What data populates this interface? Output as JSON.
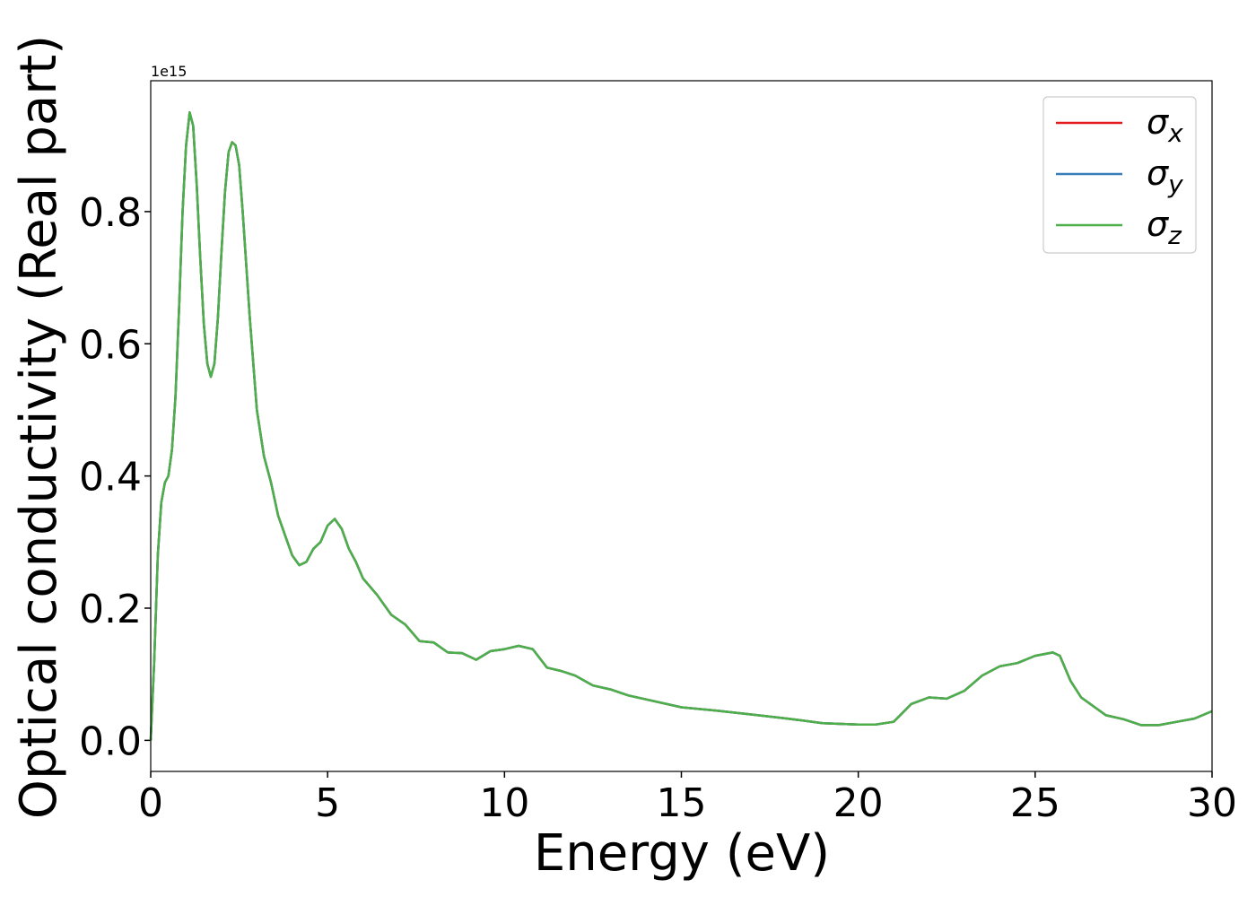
{
  "chart_data": {
    "type": "line",
    "xlabel": "Energy (eV)",
    "ylabel": "Optical conductivity (Real part)",
    "offset_label": "1e15",
    "x": [
      0,
      0.1,
      0.2,
      0.3,
      0.4,
      0.5,
      0.6,
      0.7,
      0.8,
      0.9,
      1.0,
      1.1,
      1.2,
      1.3,
      1.4,
      1.5,
      1.6,
      1.7,
      1.8,
      1.9,
      2.0,
      2.1,
      2.2,
      2.3,
      2.4,
      2.5,
      2.6,
      2.8,
      3.0,
      3.2,
      3.4,
      3.6,
      3.8,
      4.0,
      4.2,
      4.4,
      4.6,
      4.8,
      5.0,
      5.2,
      5.4,
      5.6,
      5.8,
      6.0,
      6.4,
      6.8,
      7.2,
      7.6,
      8.0,
      8.4,
      8.8,
      9.2,
      9.6,
      10.0,
      10.4,
      10.8,
      11.2,
      11.6,
      12.0,
      12.5,
      13.0,
      13.5,
      14.0,
      15.0,
      16.0,
      17.0,
      18.0,
      19.0,
      20.0,
      20.5,
      21.0,
      21.5,
      22.0,
      22.5,
      23.0,
      23.5,
      24.0,
      24.5,
      25.0,
      25.5,
      25.7,
      26.0,
      26.3,
      27.0,
      27.5,
      28.0,
      28.5,
      29.0,
      29.5,
      30.0
    ],
    "series": [
      {
        "name": "σx",
        "color": "#e41a1c",
        "values": [
          0,
          0.12,
          0.28,
          0.36,
          0.39,
          0.4,
          0.44,
          0.52,
          0.65,
          0.8,
          0.9,
          0.95,
          0.93,
          0.84,
          0.73,
          0.63,
          0.57,
          0.55,
          0.57,
          0.64,
          0.74,
          0.83,
          0.89,
          0.905,
          0.9,
          0.87,
          0.8,
          0.64,
          0.5,
          0.43,
          0.39,
          0.34,
          0.31,
          0.28,
          0.265,
          0.27,
          0.29,
          0.3,
          0.325,
          0.335,
          0.32,
          0.29,
          0.27,
          0.245,
          0.22,
          0.19,
          0.175,
          0.15,
          0.148,
          0.133,
          0.132,
          0.122,
          0.135,
          0.138,
          0.143,
          0.138,
          0.11,
          0.105,
          0.098,
          0.083,
          0.077,
          0.068,
          0.062,
          0.05,
          0.045,
          0.039,
          0.033,
          0.026,
          0.024,
          0.024,
          0.028,
          0.055,
          0.065,
          0.063,
          0.075,
          0.098,
          0.112,
          0.117,
          0.128,
          0.133,
          0.128,
          0.09,
          0.065,
          0.038,
          0.032,
          0.023,
          0.023,
          0.028,
          0.033,
          0.044
        ]
      },
      {
        "name": "σy",
        "color": "#377eb8",
        "values": [
          0,
          0.12,
          0.28,
          0.36,
          0.39,
          0.4,
          0.44,
          0.52,
          0.65,
          0.8,
          0.9,
          0.95,
          0.93,
          0.84,
          0.73,
          0.63,
          0.57,
          0.55,
          0.57,
          0.64,
          0.74,
          0.83,
          0.89,
          0.905,
          0.9,
          0.87,
          0.8,
          0.64,
          0.5,
          0.43,
          0.39,
          0.34,
          0.31,
          0.28,
          0.265,
          0.27,
          0.29,
          0.3,
          0.325,
          0.335,
          0.32,
          0.29,
          0.27,
          0.245,
          0.22,
          0.19,
          0.175,
          0.15,
          0.148,
          0.133,
          0.132,
          0.122,
          0.135,
          0.138,
          0.143,
          0.138,
          0.11,
          0.105,
          0.098,
          0.083,
          0.077,
          0.068,
          0.062,
          0.05,
          0.045,
          0.039,
          0.033,
          0.026,
          0.024,
          0.024,
          0.028,
          0.055,
          0.065,
          0.063,
          0.075,
          0.098,
          0.112,
          0.117,
          0.128,
          0.133,
          0.128,
          0.09,
          0.065,
          0.038,
          0.032,
          0.023,
          0.023,
          0.028,
          0.033,
          0.044
        ]
      },
      {
        "name": "σz",
        "color": "#4daf4a",
        "values": [
          0,
          0.12,
          0.28,
          0.36,
          0.39,
          0.4,
          0.44,
          0.52,
          0.65,
          0.8,
          0.9,
          0.95,
          0.93,
          0.84,
          0.73,
          0.63,
          0.57,
          0.55,
          0.57,
          0.64,
          0.74,
          0.83,
          0.89,
          0.905,
          0.9,
          0.87,
          0.8,
          0.64,
          0.5,
          0.43,
          0.39,
          0.34,
          0.31,
          0.28,
          0.265,
          0.27,
          0.29,
          0.3,
          0.325,
          0.335,
          0.32,
          0.29,
          0.27,
          0.245,
          0.22,
          0.19,
          0.175,
          0.15,
          0.148,
          0.133,
          0.132,
          0.122,
          0.135,
          0.138,
          0.143,
          0.138,
          0.11,
          0.105,
          0.098,
          0.083,
          0.077,
          0.068,
          0.062,
          0.05,
          0.045,
          0.039,
          0.033,
          0.026,
          0.024,
          0.024,
          0.028,
          0.055,
          0.065,
          0.063,
          0.075,
          0.098,
          0.112,
          0.117,
          0.128,
          0.133,
          0.128,
          0.09,
          0.065,
          0.038,
          0.032,
          0.023,
          0.023,
          0.028,
          0.033,
          0.044
        ]
      }
    ],
    "xlim": [
      0,
      30
    ],
    "xticks": [
      0,
      5,
      10,
      15,
      20,
      25,
      30
    ],
    "ylim": [
      -0.047,
      0.998
    ],
    "yticks": [
      {
        "value": 0,
        "label": "0.0"
      },
      0.2,
      0.4,
      0.6,
      0.8
    ],
    "grid": false,
    "legend": "upper right"
  }
}
